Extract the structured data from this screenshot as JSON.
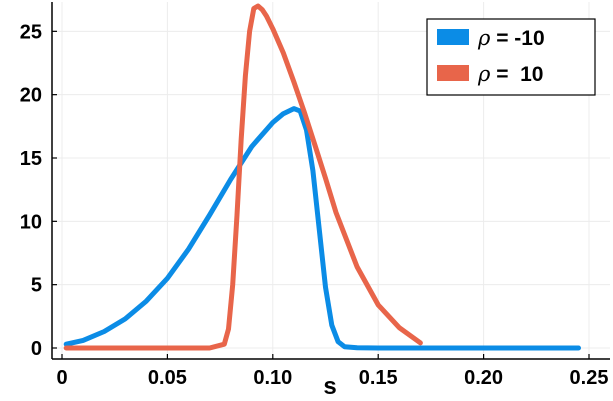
{
  "chart_data": {
    "type": "line",
    "title": "",
    "xlabel": "s",
    "ylabel": "",
    "xlim": [
      0,
      0.25
    ],
    "ylim": [
      0,
      27
    ],
    "x_ticks": [
      0,
      0.05,
      0.1,
      0.15,
      0.2,
      0.25
    ],
    "x_tick_labels": [
      "0",
      "0.05",
      "0.10",
      "0.15",
      "0.20",
      "0.25"
    ],
    "y_ticks": [
      0,
      5,
      10,
      15,
      20,
      25
    ],
    "y_tick_labels": [
      "0",
      "5",
      "10",
      "15",
      "20",
      "25"
    ],
    "grid": true,
    "legend_position": "top-right",
    "series": [
      {
        "name": "ρ = -10",
        "symbol": "ρ",
        "value_text": " = -10",
        "color": "#0b8ce6",
        "x": [
          0.002,
          0.01,
          0.02,
          0.03,
          0.04,
          0.05,
          0.06,
          0.07,
          0.08,
          0.09,
          0.1,
          0.105,
          0.11,
          0.113,
          0.116,
          0.119,
          0.122,
          0.125,
          0.128,
          0.131,
          0.134,
          0.14,
          0.15,
          0.2,
          0.245
        ],
        "y": [
          0.3,
          0.6,
          1.3,
          2.3,
          3.7,
          5.5,
          7.8,
          10.5,
          13.3,
          15.9,
          17.8,
          18.5,
          18.9,
          18.7,
          17.2,
          14.0,
          9.4,
          4.8,
          1.8,
          0.5,
          0.1,
          0.02,
          0,
          0,
          0
        ]
      },
      {
        "name": "ρ = 10",
        "symbol": "ρ",
        "value_text": " =  10",
        "color": "#e8654a",
        "x": [
          0.002,
          0.07,
          0.077,
          0.079,
          0.081,
          0.083,
          0.085,
          0.087,
          0.089,
          0.091,
          0.093,
          0.095,
          0.097,
          0.1,
          0.105,
          0.11,
          0.115,
          0.12,
          0.125,
          0.13,
          0.14,
          0.15,
          0.16,
          0.17
        ],
        "y": [
          0,
          0,
          0.3,
          1.5,
          5.0,
          10.5,
          16.5,
          21.5,
          25.0,
          26.8,
          27.0,
          26.7,
          26.2,
          25.2,
          23.3,
          21.0,
          18.6,
          16.0,
          13.4,
          10.7,
          6.4,
          3.4,
          1.6,
          0.4
        ]
      }
    ]
  }
}
